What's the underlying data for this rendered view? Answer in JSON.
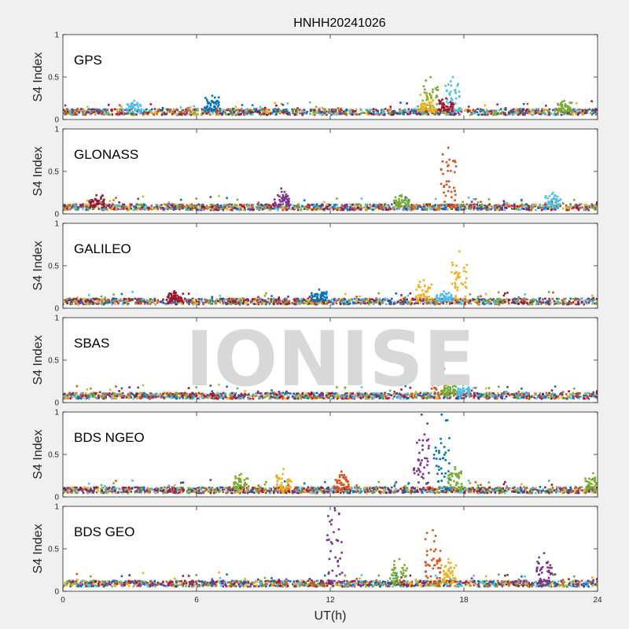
{
  "chart_data": {
    "type": "scatter",
    "title": "HNHH20241026",
    "xlabel": "UT(h)",
    "ylabel": "S4 Index",
    "xlim": [
      0,
      24
    ],
    "ylim": [
      0,
      1
    ],
    "xticks": [
      "0",
      "6",
      "12",
      "18",
      "24"
    ],
    "yticks": [
      "0",
      "0.5",
      "1"
    ],
    "watermark": "IONISE",
    "colors": [
      "#0072BD",
      "#D95319",
      "#EDB120",
      "#7E2F8E",
      "#77AC30",
      "#4DBEEE",
      "#A2142F"
    ],
    "panels": [
      {
        "label": "GPS",
        "baseline": 0.09,
        "peaks": [
          {
            "x": 3.2,
            "y": 0.22,
            "color": 5
          },
          {
            "x": 6.7,
            "y": 0.28,
            "color": 0
          },
          {
            "x": 16.5,
            "y": 0.5,
            "color": 4
          },
          {
            "x": 16.3,
            "y": 0.3,
            "color": 2
          },
          {
            "x": 17.5,
            "y": 0.5,
            "color": 5
          },
          {
            "x": 17.2,
            "y": 0.25,
            "color": 6
          },
          {
            "x": 22.5,
            "y": 0.22,
            "color": 4
          }
        ]
      },
      {
        "label": "GLONASS",
        "baseline": 0.08,
        "peaks": [
          {
            "x": 1.5,
            "y": 0.22,
            "color": 6
          },
          {
            "x": 9.8,
            "y": 0.3,
            "color": 3
          },
          {
            "x": 15.2,
            "y": 0.22,
            "color": 4
          },
          {
            "x": 17.3,
            "y": 0.78,
            "color": 1
          },
          {
            "x": 22.0,
            "y": 0.25,
            "color": 5
          }
        ]
      },
      {
        "label": "GALILEO",
        "baseline": 0.08,
        "peaks": [
          {
            "x": 5.0,
            "y": 0.2,
            "color": 6
          },
          {
            "x": 11.5,
            "y": 0.22,
            "color": 0
          },
          {
            "x": 16.2,
            "y": 0.33,
            "color": 2
          },
          {
            "x": 17.8,
            "y": 0.67,
            "color": 2
          },
          {
            "x": 17.1,
            "y": 0.2,
            "color": 5
          }
        ]
      },
      {
        "label": "SBAS",
        "baseline": 0.08,
        "peaks": [
          {
            "x": 16.9,
            "y": 0.45,
            "color": 1
          },
          {
            "x": 17.3,
            "y": 0.25,
            "color": 4
          },
          {
            "x": 18.0,
            "y": 0.22,
            "color": 5
          }
        ]
      },
      {
        "label": "BDS NGEO",
        "baseline": 0.08,
        "peaks": [
          {
            "x": 8.0,
            "y": 0.27,
            "color": 4
          },
          {
            "x": 9.9,
            "y": 0.33,
            "color": 2
          },
          {
            "x": 12.5,
            "y": 0.3,
            "color": 1
          },
          {
            "x": 16.1,
            "y": 0.97,
            "color": 3
          },
          {
            "x": 17.0,
            "y": 0.97,
            "color": 0
          },
          {
            "x": 17.6,
            "y": 0.35,
            "color": 4
          },
          {
            "x": 23.8,
            "y": 0.28,
            "color": 4
          }
        ]
      },
      {
        "label": "BDS GEO",
        "baseline": 0.09,
        "peaks": [
          {
            "x": 12.2,
            "y": 0.98,
            "color": 3
          },
          {
            "x": 15.1,
            "y": 0.38,
            "color": 4
          },
          {
            "x": 16.6,
            "y": 0.72,
            "color": 1
          },
          {
            "x": 17.3,
            "y": 0.38,
            "color": 2
          },
          {
            "x": 21.6,
            "y": 0.45,
            "color": 3
          }
        ]
      }
    ]
  }
}
